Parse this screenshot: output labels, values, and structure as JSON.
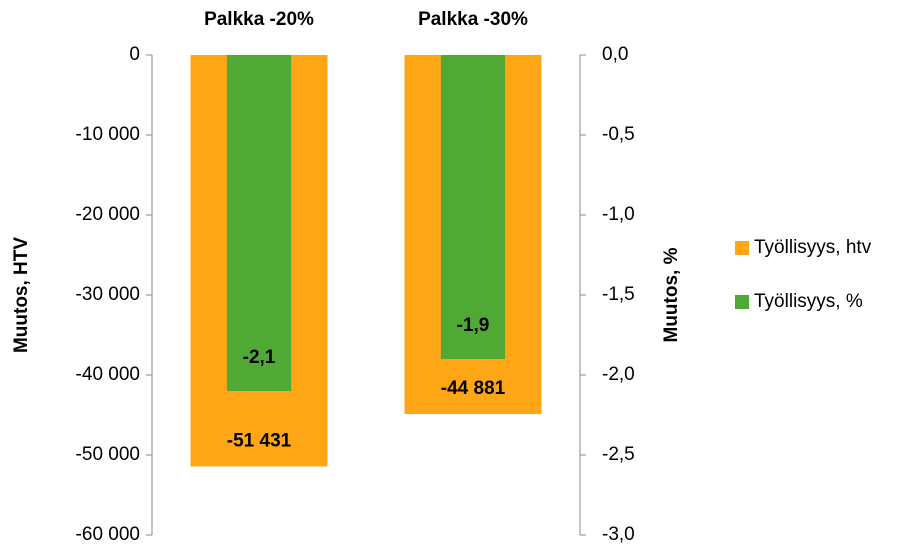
{
  "chart_data": {
    "type": "bar",
    "categories": [
      "Palkka -20%",
      "Palkka -30%"
    ],
    "ylabel": "Muutos, HTV",
    "y2label": "Muutos, %",
    "ylim": [
      -60000,
      0
    ],
    "yticks": [
      {
        "value": -60000,
        "label": "-60 000"
      },
      {
        "value": -50000,
        "label": "-50 000"
      },
      {
        "value": -40000,
        "label": "-40 000"
      },
      {
        "value": -30000,
        "label": "-30 000"
      },
      {
        "value": -20000,
        "label": "-20 000"
      },
      {
        "value": -10000,
        "label": "-10 000"
      },
      0
    ],
    "y2lim": [
      -3.0,
      0.0
    ],
    "y2ticks": [
      {
        "value": -3.0,
        "label": "-3,0"
      },
      {
        "value": -2.5,
        "label": "-2,5"
      },
      {
        "value": -2.0,
        "label": "-2,0"
      },
      {
        "value": -1.5,
        "label": "-1,5"
      },
      {
        "value": -1.0,
        "label": "-1,0"
      },
      {
        "value": -0.5,
        "label": "-0,5"
      },
      {
        "value": 0.0,
        "label": "0,0"
      }
    ],
    "legend": "right",
    "series": [
      {
        "name": "Työllisyys, htv",
        "color": "#FFA616",
        "values": [
          -51431,
          -44881
        ],
        "value_labels": [
          "-51 431",
          "-44 881"
        ]
      },
      {
        "name": "Työllisyys, %",
        "color": "#50A935",
        "axis": "y2",
        "values": [
          -2.1,
          -1.9
        ],
        "value_labels": [
          "-2,1",
          "-1,9"
        ]
      }
    ]
  }
}
